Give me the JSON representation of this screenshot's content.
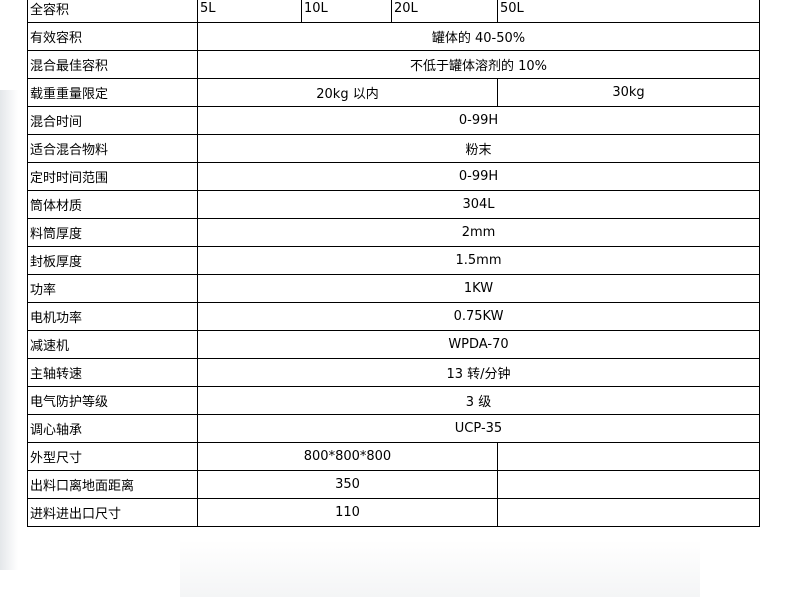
{
  "capacity_row": {
    "label": "全容积",
    "values": [
      "5L",
      "10L",
      "20L",
      "50L"
    ]
  },
  "rows": [
    {
      "label": "有效容积",
      "value": "罐体的 40-50%"
    },
    {
      "label": "混合最佳容积",
      "value": "不低于罐体溶剂的 10%"
    }
  ],
  "load_row": {
    "label": "载重重量限定",
    "values": [
      "20kg 以内",
      "30kg"
    ]
  },
  "rows2": [
    {
      "label": "混合时间",
      "value": "0-99H"
    },
    {
      "label": "适合混合物料",
      "value": "粉末"
    },
    {
      "label": "定时时间范围",
      "value": "0-99H"
    },
    {
      "label": "筒体材质",
      "value": "304L"
    },
    {
      "label": "料筒厚度",
      "value": "2mm"
    },
    {
      "label": "封板厚度",
      "value": "1.5mm"
    },
    {
      "label": "功率",
      "value": "1KW"
    },
    {
      "label": "电机功率",
      "value": "0.75KW"
    },
    {
      "label": "减速机",
      "value": "WPDA-70"
    },
    {
      "label": "主轴转速",
      "value": "13 转/分钟"
    },
    {
      "label": "电气防护等级",
      "value": "3 级"
    },
    {
      "label": "调心轴承",
      "value": "UCP-35"
    }
  ],
  "rows3": [
    {
      "label": "外型尺寸",
      "value": "800*800*800",
      "value2": ""
    },
    {
      "label": "出料口离地面距离",
      "value": "350",
      "value2": ""
    },
    {
      "label": "进料进出口尺寸",
      "value": "110",
      "value2": ""
    }
  ]
}
